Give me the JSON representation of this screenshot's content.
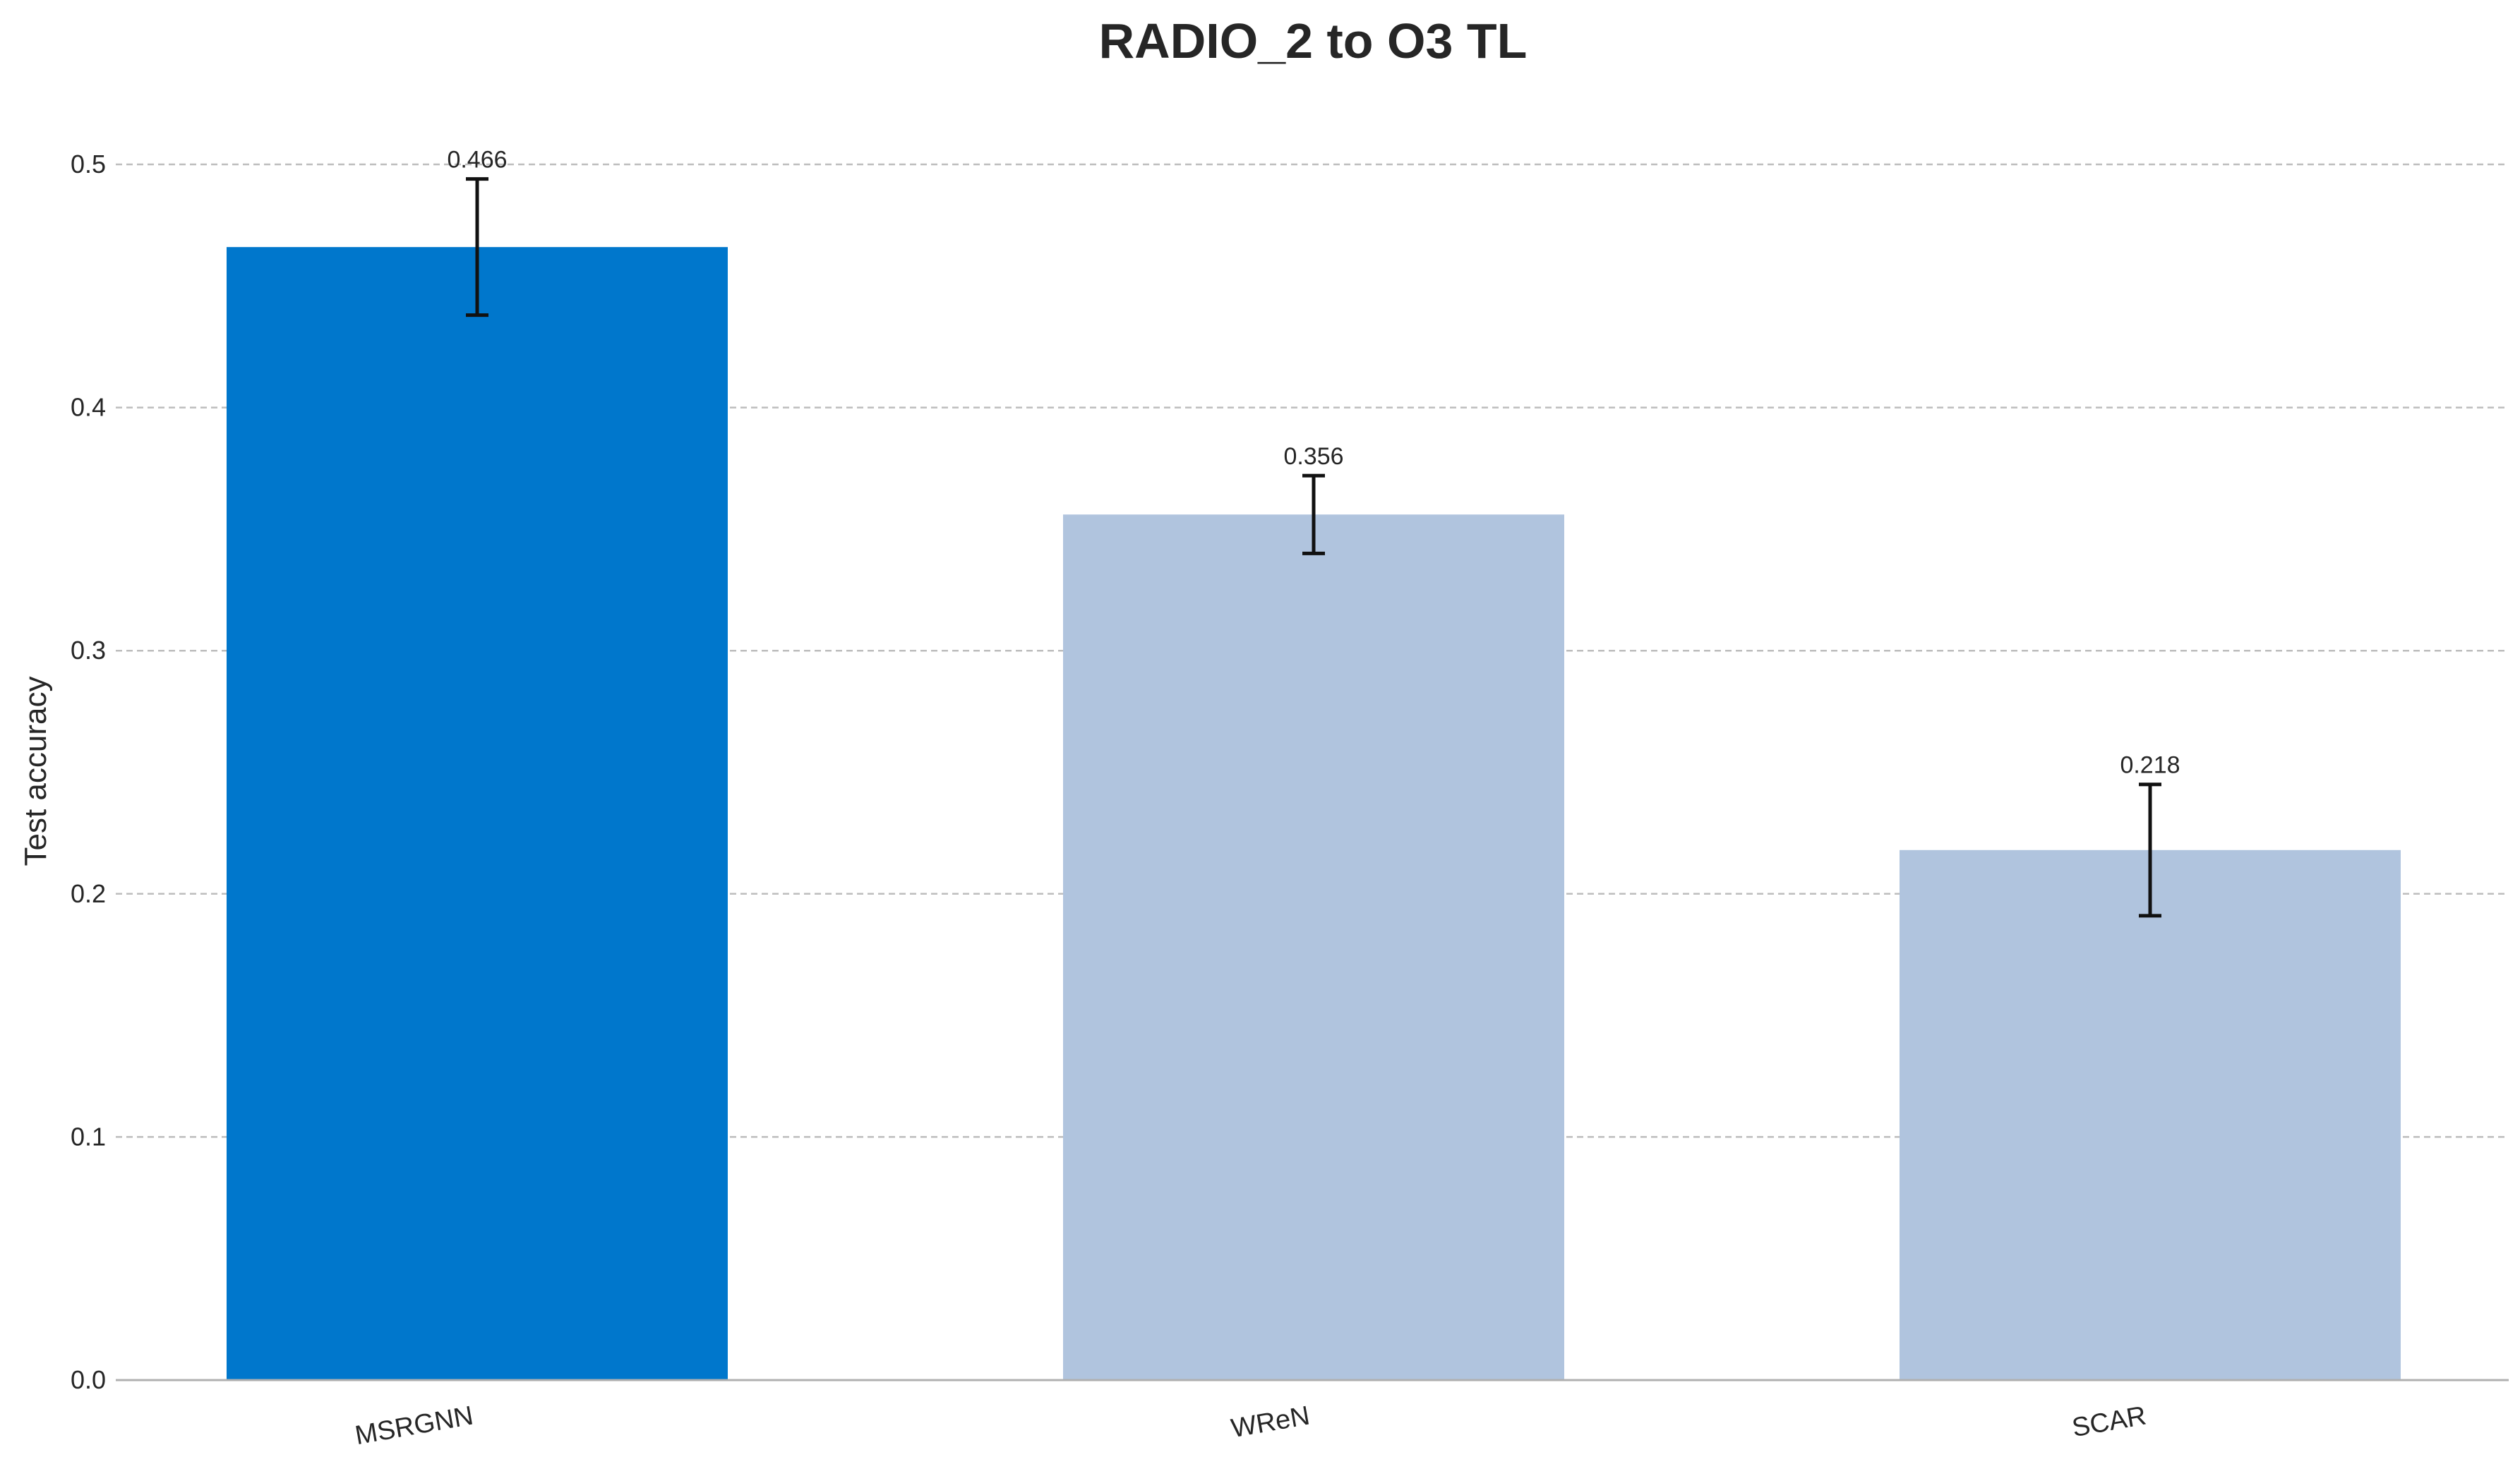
{
  "chart_data": {
    "type": "bar",
    "title": "RADIO_2 to O3 TL",
    "xlabel": "",
    "ylabel": "Test accuracy",
    "categories": [
      "MSRGNN",
      "WReN",
      "SCAR"
    ],
    "values": [
      0.466,
      0.356,
      0.218
    ],
    "value_labels": [
      "0.466",
      "0.356",
      "0.218"
    ],
    "errors": [
      0.028,
      0.016,
      0.027
    ],
    "bar_colors": [
      "#0077cc",
      "#b0c4de",
      "#b0c4de"
    ],
    "ylim": [
      0,
      0.52
    ],
    "yticks": [
      0.0,
      0.1,
      0.2,
      0.3,
      0.4,
      0.5
    ],
    "ytick_labels": [
      "0.0",
      "0.1",
      "0.2",
      "0.3",
      "0.4",
      "0.5"
    ],
    "grid": "y-dashed",
    "legend": "none"
  }
}
